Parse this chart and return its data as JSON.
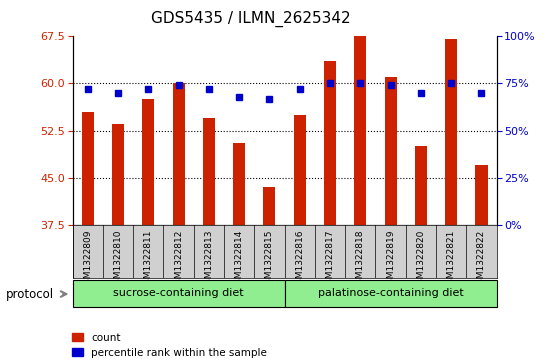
{
  "title": "GDS5435 / ILMN_2625342",
  "samples": [
    "GSM1322809",
    "GSM1322810",
    "GSM1322811",
    "GSM1322812",
    "GSM1322813",
    "GSM1322814",
    "GSM1322815",
    "GSM1322816",
    "GSM1322817",
    "GSM1322818",
    "GSM1322819",
    "GSM1322820",
    "GSM1322821",
    "GSM1322822"
  ],
  "counts": [
    55.5,
    53.5,
    57.5,
    60.0,
    54.5,
    50.5,
    43.5,
    55.0,
    63.5,
    67.5,
    61.0,
    50.0,
    67.0,
    47.0
  ],
  "percentiles": [
    72,
    70,
    72,
    74,
    72,
    68,
    67,
    72,
    75,
    75,
    74,
    70,
    75,
    70
  ],
  "ylim_left": [
    37.5,
    67.5
  ],
  "ylim_right": [
    0,
    100
  ],
  "yticks_left": [
    37.5,
    45,
    52.5,
    60,
    67.5
  ],
  "yticks_right": [
    0,
    25,
    50,
    75,
    100
  ],
  "bar_color": "#cc2200",
  "square_color": "#0000cc",
  "background_label": "#d0d0d0",
  "background_protocol": "#90ee90",
  "sucrose_label": "sucrose-containing diet",
  "palatinose_label": "palatinose-containing diet",
  "protocol_label": "protocol",
  "sucrose_count": 7,
  "palatinose_count": 7,
  "legend_count_label": "count",
  "legend_percentile_label": "percentile rank within the sample",
  "title_fontsize": 11,
  "tick_fontsize": 8,
  "bar_width": 0.4
}
